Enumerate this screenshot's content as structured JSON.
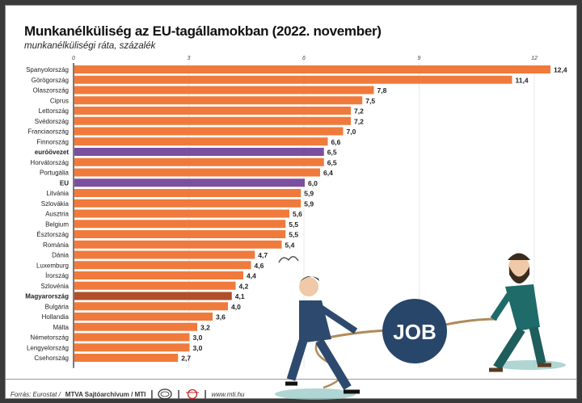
{
  "chart_data": {
    "type": "bar",
    "orientation": "horizontal",
    "title": "Munkanélküliség az EU-tagállamokban (2022. november)",
    "subtitle": "munkanélküliségi ráta, százalék",
    "xlim": [
      0,
      12.6
    ],
    "xticks": [
      0,
      3,
      6,
      9,
      12
    ],
    "grid": true,
    "categories": [
      "Spanyolország",
      "Görögország",
      "Olaszország",
      "Ciprus",
      "Lettország",
      "Svédország",
      "Franciaország",
      "Finnország",
      "euróövezet",
      "Horvátország",
      "Portugália",
      "EU",
      "Litvánia",
      "Szlovákia",
      "Ausztria",
      "Belgium",
      "Észtország",
      "Románia",
      "Dánia",
      "Luxemburg",
      "Írország",
      "Szlovénia",
      "Magyarország",
      "Bulgária",
      "Hollandia",
      "Málta",
      "Németország",
      "Lengyelország",
      "Csehország"
    ],
    "values": [
      12.4,
      11.4,
      7.8,
      7.5,
      7.2,
      7.2,
      7.0,
      6.6,
      6.5,
      6.5,
      6.4,
      6.0,
      5.9,
      5.9,
      5.6,
      5.5,
      5.5,
      5.4,
      4.7,
      4.6,
      4.4,
      4.2,
      4.1,
      4.0,
      3.6,
      3.2,
      3.0,
      3.0,
      2.7
    ],
    "labels": [
      "12,4",
      "11,4",
      "7,8",
      "7,5",
      "7,2",
      "7,2",
      "7,0",
      "6,6",
      "6,5",
      "6,5",
      "6,4",
      "6,0",
      "5,9",
      "5,9",
      "5,6",
      "5,5",
      "5,5",
      "5,4",
      "4,7",
      "4,6",
      "4,4",
      "4,2",
      "4,1",
      "4,0",
      "3,6",
      "3,2",
      "3,0",
      "3,0",
      "2,7"
    ],
    "highlight": {
      "euróövezet": "#7b4fa0",
      "EU": "#7b4fa0",
      "Magyarország": "#b0502a"
    },
    "bold_categories": [
      "euróövezet",
      "EU",
      "Magyarország"
    ],
    "bar_color": "#f07a3c"
  },
  "illustration": {
    "ball_text": "JOB"
  },
  "footer": {
    "source": "Forrás: Eurostat /",
    "credit": "MTVA Sajtóarchívum / MTI",
    "url": "www.mti.hu",
    "separator": "|"
  }
}
